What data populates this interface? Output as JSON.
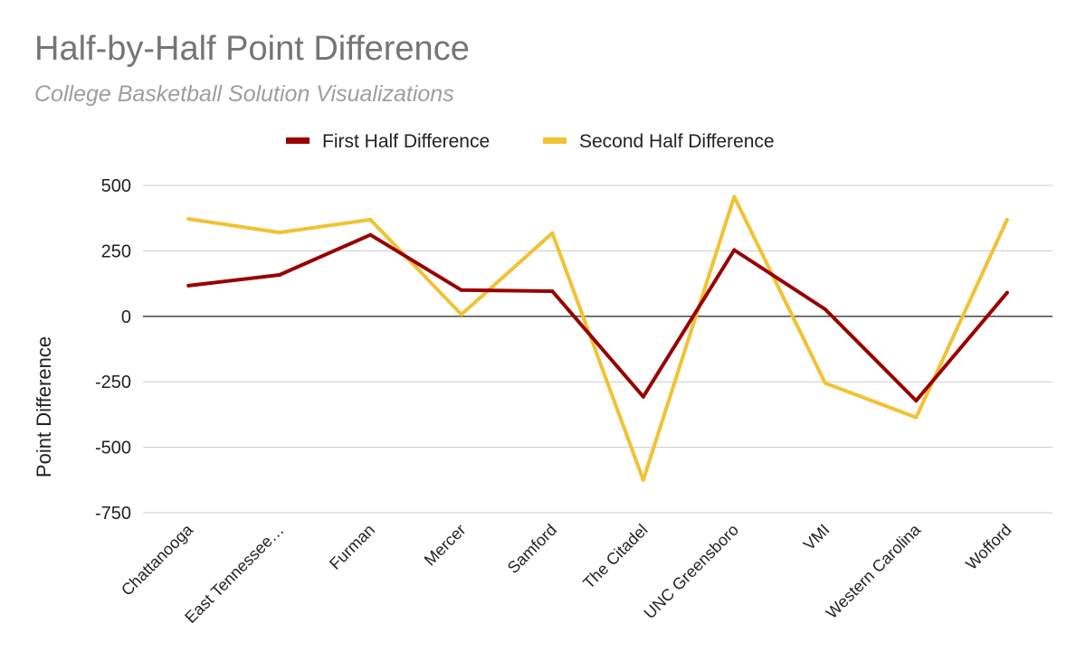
{
  "chart_data": {
    "type": "line",
    "title": "Half-by-Half Point Difference",
    "subtitle": "College Basketball Solution Visualizations",
    "xlabel": "",
    "ylabel": "Point Difference",
    "categories": [
      "Chattanooga",
      "East Tennessee…",
      "Furman",
      "Mercer",
      "Samford",
      "The Citadel",
      "UNC Greensboro",
      "VMI",
      "Western Carolina",
      "Wofford"
    ],
    "series": [
      {
        "name": "First Half Difference",
        "color": "#990000",
        "values": [
          117,
          158,
          311,
          100,
          96,
          -307,
          253,
          27,
          -322,
          90
        ]
      },
      {
        "name": "Second Half Difference",
        "color": "#f1c232",
        "values": [
          372,
          320,
          369,
          7,
          318,
          -625,
          457,
          -255,
          -386,
          369
        ]
      }
    ],
    "ylim": [
      -750,
      500
    ],
    "yticks": [
      500,
      250,
      0,
      -250,
      -500,
      -750
    ],
    "ytick_labels": [
      "500",
      "250",
      "0",
      "-250",
      "-500",
      "-750"
    ],
    "grid": true,
    "legend": "top-center",
    "colors": {
      "gridline": "#cccccc",
      "zeroline": "#333333",
      "text": "#222222"
    }
  }
}
